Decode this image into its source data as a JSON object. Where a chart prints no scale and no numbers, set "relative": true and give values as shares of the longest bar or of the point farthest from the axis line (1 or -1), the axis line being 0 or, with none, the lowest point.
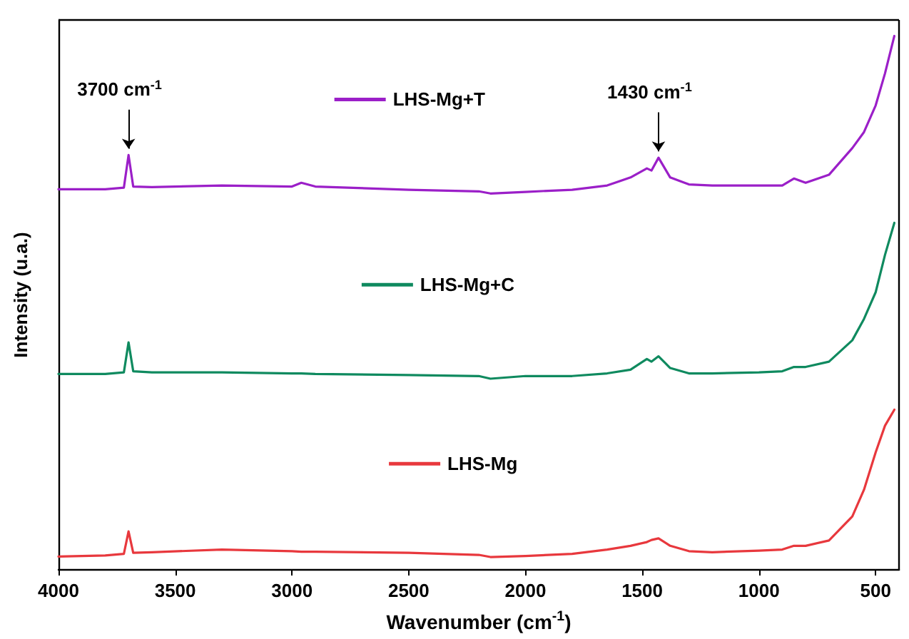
{
  "chart_data": {
    "type": "line",
    "relative": true,
    "xlabel": "Wavenumber (cm$^{-1}$)",
    "ylabel": "Intensity (u.a.)",
    "x": [
      4000,
      3800,
      3720,
      3700,
      3680,
      3600,
      3300,
      3000,
      2960,
      2900,
      2500,
      2200,
      2150,
      2000,
      1800,
      1650,
      1550,
      1480,
      1460,
      1430,
      1380,
      1300,
      1200,
      1000,
      900,
      850,
      800,
      700,
      600,
      550,
      500,
      460,
      420
    ],
    "xlim": [
      4000,
      400
    ],
    "xticks": [
      4000,
      3500,
      3000,
      2500,
      2000,
      1500,
      1000,
      500
    ],
    "series": [
      {
        "name": "LHS-Mg+T",
        "color": "#9b1fc8",
        "values": [
          0.713,
          0.713,
          0.716,
          0.777,
          0.718,
          0.717,
          0.72,
          0.718,
          0.725,
          0.718,
          0.712,
          0.709,
          0.705,
          0.708,
          0.712,
          0.72,
          0.735,
          0.752,
          0.748,
          0.772,
          0.735,
          0.722,
          0.72,
          0.72,
          0.72,
          0.733,
          0.725,
          0.74,
          0.79,
          0.82,
          0.87,
          0.93,
          1.0
        ]
      },
      {
        "name": "LHS-Mg+C",
        "color": "#0f8a5f",
        "values": [
          0.367,
          0.367,
          0.37,
          0.426,
          0.372,
          0.37,
          0.37,
          0.368,
          0.368,
          0.367,
          0.365,
          0.363,
          0.358,
          0.363,
          0.363,
          0.368,
          0.375,
          0.395,
          0.39,
          0.4,
          0.378,
          0.368,
          0.368,
          0.37,
          0.372,
          0.38,
          0.38,
          0.39,
          0.43,
          0.47,
          0.52,
          0.59,
          0.65
        ]
      },
      {
        "name": "LHS-Mg",
        "color": "#e8383d",
        "values": [
          0.025,
          0.027,
          0.03,
          0.072,
          0.032,
          0.033,
          0.038,
          0.035,
          0.034,
          0.034,
          0.032,
          0.028,
          0.024,
          0.026,
          0.03,
          0.038,
          0.045,
          0.052,
          0.056,
          0.059,
          0.045,
          0.035,
          0.033,
          0.036,
          0.038,
          0.045,
          0.045,
          0.055,
          0.1,
          0.15,
          0.22,
          0.27,
          0.3
        ]
      }
    ],
    "annotations": [
      {
        "text": "3700 cm$^{-1}$",
        "x": 3700,
        "y": 0.777
      },
      {
        "text": "1430 cm$^{-1}$",
        "x": 1430,
        "y": 0.772
      }
    ],
    "legend": "top",
    "grid": false,
    "marker": "none",
    "line_style": "solid"
  }
}
